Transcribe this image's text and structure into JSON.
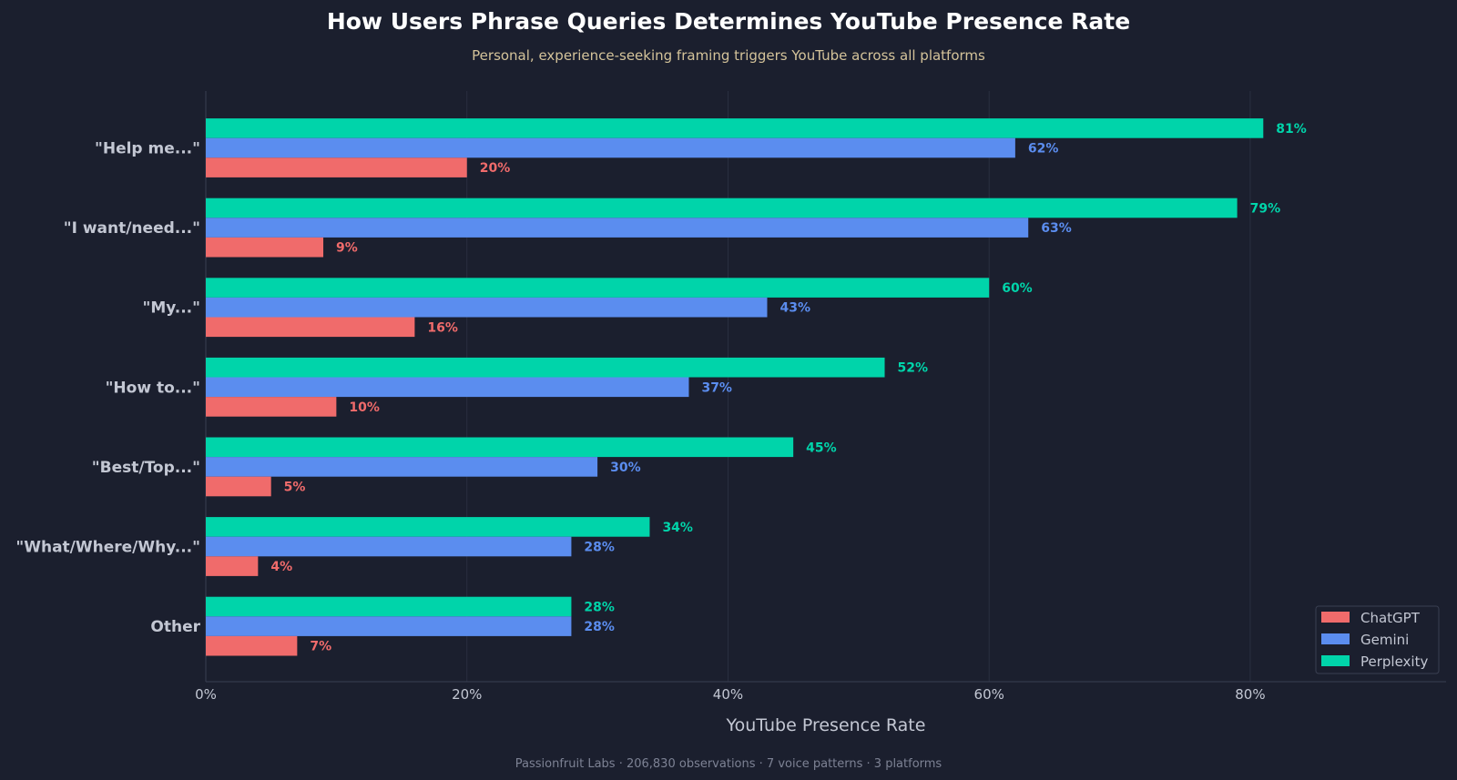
{
  "chart_data": {
    "type": "bar",
    "orientation": "horizontal",
    "title": "How Users Phrase Queries Determines YouTube Presence Rate",
    "subtitle": "Personal, experience-seeking framing triggers YouTube across all platforms",
    "xlabel": "YouTube Presence Rate",
    "ylabel": "",
    "xlim": [
      0,
      95
    ],
    "x_ticks": [
      0,
      20,
      40,
      60,
      80
    ],
    "x_tick_labels": [
      "0%",
      "20%",
      "40%",
      "60%",
      "80%"
    ],
    "grid": "vertical",
    "legend_position": "bottom-right",
    "categories": [
      "\"Help me...\"",
      "\"I want/need...\"",
      "\"My...\"",
      "\"How to...\"",
      "\"Best/Top...\"",
      "\"What/Where/Why...\"",
      "Other"
    ],
    "series": [
      {
        "name": "Perplexity",
        "color": "#00d4aa",
        "values": [
          81,
          79,
          60,
          52,
          45,
          34,
          28
        ],
        "labels": [
          "81%",
          "79%",
          "60%",
          "52%",
          "45%",
          "34%",
          "28%"
        ]
      },
      {
        "name": "Gemini",
        "color": "#5b8def",
        "values": [
          62,
          63,
          43,
          37,
          30,
          28,
          28
        ],
        "labels": [
          "62%",
          "63%",
          "43%",
          "37%",
          "30%",
          "28%",
          "28%"
        ]
      },
      {
        "name": "ChatGPT",
        "color": "#f06b6b",
        "values": [
          20,
          9,
          16,
          10,
          5,
          4,
          7
        ],
        "labels": [
          "20%",
          "9%",
          "16%",
          "10%",
          "5%",
          "4%",
          "7%"
        ]
      }
    ],
    "legend": [
      "ChatGPT",
      "Gemini",
      "Perplexity"
    ],
    "footer": "Passionfruit Labs  ·  206,830 observations  ·  7 voice patterns  ·  3 platforms"
  },
  "colors": {
    "background": "#1b1f2e",
    "grid": "#2a2f40",
    "axis": "#3a3f52"
  }
}
